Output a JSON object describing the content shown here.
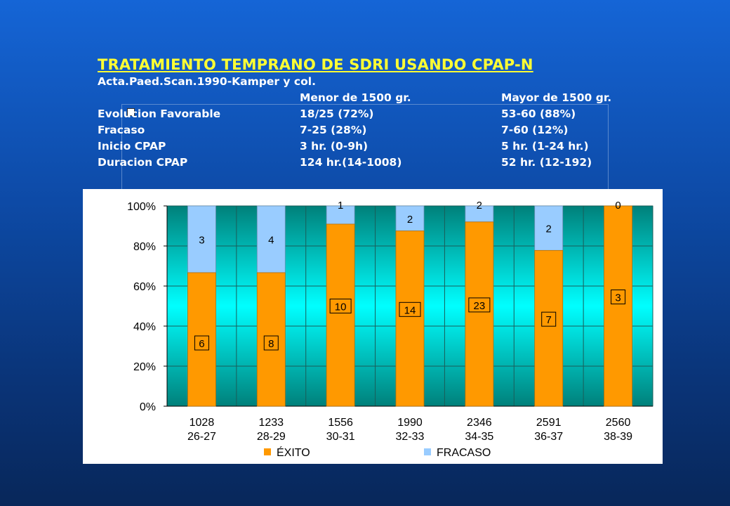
{
  "slide": {
    "title": "TRATAMIENTO TEMPRANO DE SDRI USANDO CPAP-N",
    "citation": "Acta.Paed.Scan.1990-Kamper y col."
  },
  "table": {
    "headers": [
      "",
      "Menor de 1500 gr.",
      "Mayor de 1500 gr."
    ],
    "rows": [
      [
        "Evolucion Favorable",
        "18/25 (72%)",
        "53-60 (88%)"
      ],
      [
        "Fracaso",
        "7-25 (28%)",
        "7-60 (12%)"
      ],
      [
        "Inicio CPAP",
        "3 hr. (0-9h)",
        "5 hr. (1-24 hr.)"
      ],
      [
        "Duracion CPAP",
        "124 hr.(14-1008)",
        "52 hr. (12-192)"
      ]
    ]
  },
  "colors": {
    "title": "#ffff33",
    "exito": "#ff9900",
    "fracaso": "#99ccff"
  },
  "chart_data": {
    "type": "bar",
    "stacked": "percent",
    "categories": [
      [
        "1028",
        "26-27"
      ],
      [
        "1233",
        "28-29"
      ],
      [
        "1556",
        "30-31"
      ],
      [
        "1990",
        "32-33"
      ],
      [
        "2346",
        "34-35"
      ],
      [
        "2591",
        "36-37"
      ],
      [
        "2560",
        "38-39"
      ]
    ],
    "series": [
      {
        "name": "ÉXITO",
        "values": [
          6,
          8,
          10,
          14,
          23,
          7,
          3
        ],
        "color": "#ff9900"
      },
      {
        "name": "FRACASO",
        "values": [
          3,
          4,
          1,
          2,
          2,
          2,
          0
        ],
        "color": "#99ccff"
      }
    ],
    "yticks": [
      "0%",
      "20%",
      "40%",
      "60%",
      "80%",
      "100%"
    ],
    "ylim": [
      0,
      100
    ],
    "legend": "bottom",
    "grid": true
  }
}
